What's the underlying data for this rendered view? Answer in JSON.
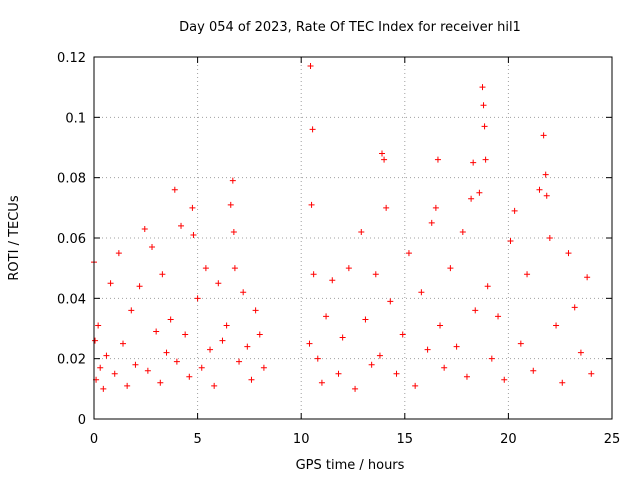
{
  "chart_data": {
    "type": "scatter",
    "title": "Day 054 of 2023, Rate Of TEC Index for receiver hil1",
    "xlabel": "GPS time / hours",
    "ylabel": "ROTI / TECUs",
    "xlim": [
      0,
      25
    ],
    "ylim": [
      0,
      0.12
    ],
    "xticks": [
      0,
      5,
      10,
      15,
      20,
      25
    ],
    "xtick_labels": [
      "0",
      "5",
      "10",
      "15",
      "20",
      "25"
    ],
    "yticks": [
      0,
      0.02,
      0.04,
      0.06,
      0.08,
      0.1,
      0.12
    ],
    "ytick_labels": [
      "0",
      "0.02",
      "0.04",
      "0.06",
      "0.08",
      "0.1",
      "0.12"
    ],
    "grid": true,
    "marker": "plus",
    "color": "#ff0000",
    "series": [
      {
        "name": "ROTI",
        "x": [
          0.0,
          0.05,
          0.1,
          0.2,
          0.3,
          0.45,
          0.6,
          0.8,
          1.0,
          1.2,
          1.4,
          1.6,
          1.8,
          2.0,
          2.2,
          2.45,
          2.6,
          2.8,
          3.0,
          3.2,
          3.3,
          3.5,
          3.7,
          3.9,
          4.0,
          4.2,
          4.4,
          4.6,
          4.75,
          4.8,
          5.0,
          5.2,
          5.4,
          5.6,
          5.8,
          6.0,
          6.2,
          6.4,
          6.6,
          6.7,
          6.75,
          6.8,
          7.0,
          7.2,
          7.4,
          7.6,
          7.8,
          8.0,
          8.2,
          10.4,
          10.45,
          10.5,
          10.55,
          10.6,
          10.8,
          11.0,
          11.2,
          11.5,
          11.8,
          12.0,
          12.3,
          12.6,
          12.9,
          13.1,
          13.4,
          13.6,
          13.8,
          13.9,
          14.0,
          14.1,
          14.3,
          14.6,
          14.9,
          15.2,
          15.5,
          15.8,
          16.1,
          16.3,
          16.5,
          16.6,
          16.7,
          16.9,
          17.2,
          17.5,
          17.8,
          18.0,
          18.2,
          18.3,
          18.4,
          18.6,
          18.75,
          18.8,
          18.85,
          18.9,
          19.0,
          19.2,
          19.5,
          19.8,
          20.1,
          20.3,
          20.6,
          20.9,
          21.2,
          21.5,
          21.7,
          21.8,
          21.85,
          22.0,
          22.3,
          22.6,
          22.9,
          23.2,
          23.5,
          23.8,
          24.0
        ],
        "y": [
          0.052,
          0.026,
          0.013,
          0.031,
          0.017,
          0.01,
          0.021,
          0.045,
          0.015,
          0.055,
          0.025,
          0.011,
          0.036,
          0.018,
          0.044,
          0.063,
          0.016,
          0.057,
          0.029,
          0.012,
          0.048,
          0.022,
          0.033,
          0.076,
          0.019,
          0.064,
          0.028,
          0.014,
          0.07,
          0.061,
          0.04,
          0.017,
          0.05,
          0.023,
          0.011,
          0.045,
          0.026,
          0.031,
          0.071,
          0.079,
          0.062,
          0.05,
          0.019,
          0.042,
          0.024,
          0.013,
          0.036,
          0.028,
          0.017,
          0.025,
          0.117,
          0.071,
          0.096,
          0.048,
          0.02,
          0.012,
          0.034,
          0.046,
          0.015,
          0.027,
          0.05,
          0.01,
          0.062,
          0.033,
          0.018,
          0.048,
          0.021,
          0.088,
          0.086,
          0.07,
          0.039,
          0.015,
          0.028,
          0.055,
          0.011,
          0.042,
          0.023,
          0.065,
          0.07,
          0.086,
          0.031,
          0.017,
          0.05,
          0.024,
          0.062,
          0.014,
          0.073,
          0.085,
          0.036,
          0.075,
          0.11,
          0.104,
          0.097,
          0.086,
          0.044,
          0.02,
          0.034,
          0.013,
          0.059,
          0.069,
          0.025,
          0.048,
          0.016,
          0.076,
          0.094,
          0.081,
          0.074,
          0.06,
          0.031,
          0.012,
          0.055,
          0.037,
          0.022,
          0.047,
          0.015
        ]
      }
    ]
  }
}
